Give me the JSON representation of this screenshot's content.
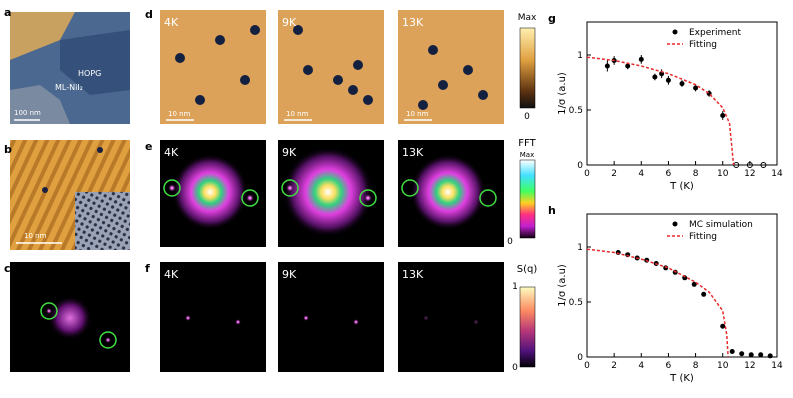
{
  "panel_labels": [
    "a",
    "b",
    "c",
    "d",
    "e",
    "f",
    "g",
    "h"
  ],
  "panel_a": {
    "material": "ML-NiI₂",
    "substrate": "HOPG",
    "scale_bar": "100 nm"
  },
  "panel_b": {
    "scale_bar": "10 nm"
  },
  "panel_d": {
    "temperatures": [
      "4K",
      "9K",
      "13K"
    ],
    "scale_bars": [
      "10 nm",
      "10 nm",
      "10 nm"
    ],
    "colorbar": {
      "max": "Max",
      "min": "0"
    }
  },
  "panel_e": {
    "temperatures": [
      "4K",
      "9K",
      "13K"
    ],
    "colorbar": {
      "title": "FFT",
      "max": "Max",
      "min": "0"
    }
  },
  "panel_f": {
    "temperatures": [
      "4K",
      "9K",
      "13K"
    ],
    "colorbar": {
      "title": "S(q)",
      "max": "1",
      "min": "0"
    }
  },
  "chart_data": [
    {
      "type": "scatter",
      "x_label": "T (K)",
      "y_label": "1/σ (a.u)",
      "xlim": [
        0,
        14
      ],
      "xticks": [
        0,
        2,
        4,
        6,
        8,
        10,
        12,
        14
      ],
      "ylim": [
        0,
        1.3
      ],
      "yticks": [
        0,
        0.5,
        1
      ],
      "legend": "upper right",
      "series": [
        {
          "name": "Experiment",
          "type": "errorbar",
          "color": "#000000",
          "x": [
            1.5,
            2,
            3,
            4,
            5,
            5.5,
            6,
            7,
            8,
            9,
            10
          ],
          "values": [
            0.9,
            0.95,
            0.9,
            0.96,
            0.8,
            0.83,
            0.77,
            0.74,
            0.7,
            0.65,
            0.45
          ],
          "errors": [
            0.05,
            0.04,
            0.03,
            0.04,
            0.03,
            0.04,
            0.04,
            0.03,
            0.03,
            0.03,
            0.04
          ]
        },
        {
          "type": "hollow",
          "color": "#000000",
          "x": [
            11,
            12,
            13
          ],
          "values": [
            0,
            0,
            0
          ]
        },
        {
          "name": "Fitting",
          "type": "line",
          "color": "#e8292b",
          "x": [
            0,
            2,
            4,
            6,
            8,
            9,
            10,
            10.5,
            10.8
          ],
          "values": [
            0.98,
            0.95,
            0.9,
            0.83,
            0.73,
            0.65,
            0.52,
            0.38,
            0
          ]
        }
      ]
    },
    {
      "type": "scatter",
      "x_label": "T (K)",
      "y_label": "1/σ (a.u)",
      "xlim": [
        0,
        14
      ],
      "xticks": [
        0,
        2,
        4,
        6,
        8,
        10,
        12,
        14
      ],
      "ylim": [
        0,
        1.3
      ],
      "yticks": [
        0,
        0.5,
        1
      ],
      "legend": "upper right",
      "series": [
        {
          "name": "MC simulation",
          "type": "points",
          "color": "#000000",
          "x": [
            2.3,
            3,
            3.7,
            4.4,
            5.1,
            5.8,
            6.5,
            7.2,
            7.9,
            8.6,
            10,
            10.7,
            11.4,
            12.1,
            12.8,
            13.5
          ],
          "values": [
            0.95,
            0.93,
            0.9,
            0.88,
            0.85,
            0.81,
            0.77,
            0.72,
            0.66,
            0.57,
            0.28,
            0.05,
            0.03,
            0.02,
            0.02,
            0.01
          ]
        },
        {
          "name": "Fitting",
          "type": "line",
          "color": "#e8292b",
          "x": [
            0,
            2,
            4,
            6,
            8,
            9,
            10,
            10.3,
            10.4
          ],
          "values": [
            0.98,
            0.95,
            0.89,
            0.81,
            0.68,
            0.59,
            0.42,
            0.2,
            0
          ]
        }
      ]
    }
  ]
}
